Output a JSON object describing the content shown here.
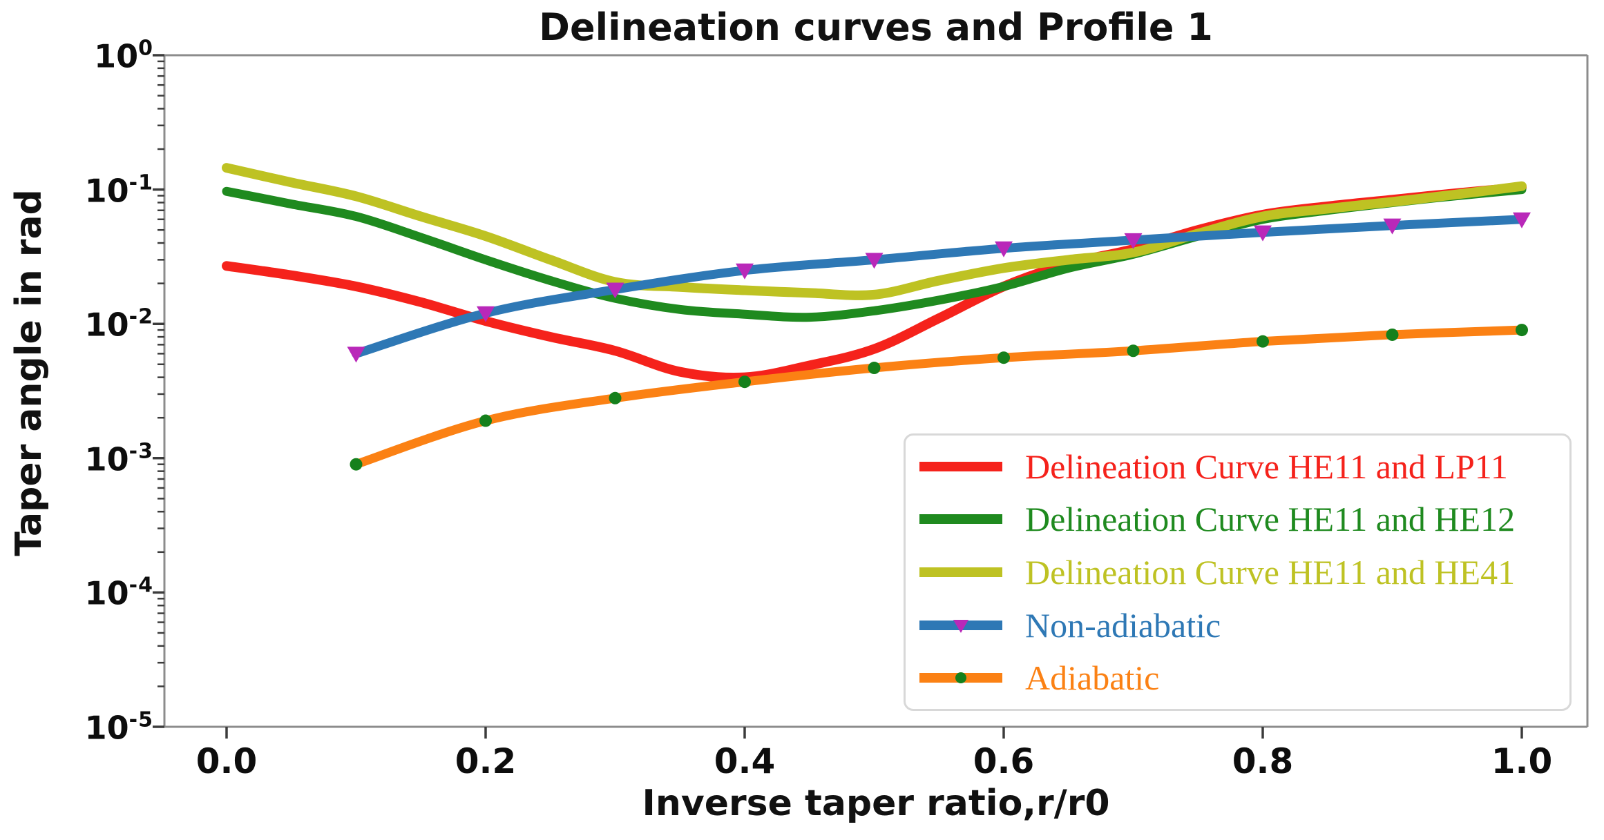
{
  "figure": {
    "background": "#ffffff",
    "spine_color": "#8c8c8c",
    "tick_color": "#3c3c3c"
  },
  "chart_data": {
    "type": "line",
    "title": "Delineation curves and Profile 1",
    "xlabel": "Inverse taper ratio,r/r0",
    "ylabel": "Taper angle in rad",
    "x_scale": "linear",
    "y_scale": "log",
    "xlim": [
      -0.048,
      1.05
    ],
    "ylim": [
      1e-05,
      1
    ],
    "grid": false,
    "legend_position": "lower-right",
    "x_tick_labels": [
      "0.0",
      "0.2",
      "0.4",
      "0.6",
      "0.8",
      "1.0"
    ],
    "x_tick_values": [
      0.0,
      0.2,
      0.4,
      0.6,
      0.8,
      1.0
    ],
    "y_tick_base": "10",
    "y_tick_exponents": [
      0,
      -1,
      -2,
      -3,
      -4,
      -5
    ],
    "series": [
      {
        "name": "Delineation Curve HE11 and LP11",
        "color": "#f5221b",
        "marker": "none",
        "marker_color": null,
        "line_width": 14,
        "x": [
          0.0,
          0.05,
          0.1,
          0.15,
          0.2,
          0.25,
          0.3,
          0.35,
          0.4,
          0.45,
          0.5,
          0.55,
          0.6,
          0.65,
          0.7,
          0.75,
          0.8,
          0.85,
          0.9,
          0.95,
          1.0
        ],
        "y": [
          0.027,
          0.023,
          0.019,
          0.0145,
          0.0105,
          0.008,
          0.0063,
          0.0044,
          0.004,
          0.0049,
          0.0065,
          0.011,
          0.019,
          0.028,
          0.036,
          0.05,
          0.065,
          0.075,
          0.084,
          0.094,
          0.104
        ]
      },
      {
        "name": "Delineation Curve HE11 and HE12",
        "color": "#1f8a1f",
        "marker": "none",
        "marker_color": null,
        "line_width": 13,
        "x": [
          0.0,
          0.05,
          0.1,
          0.15,
          0.2,
          0.25,
          0.3,
          0.35,
          0.4,
          0.45,
          0.5,
          0.55,
          0.6,
          0.65,
          0.7,
          0.75,
          0.8,
          0.85,
          0.9,
          0.95,
          1.0
        ],
        "y": [
          0.097,
          0.078,
          0.063,
          0.044,
          0.03,
          0.021,
          0.0155,
          0.0128,
          0.0118,
          0.0112,
          0.0125,
          0.015,
          0.019,
          0.026,
          0.033,
          0.045,
          0.06,
          0.07,
          0.08,
          0.09,
          0.1
        ]
      },
      {
        "name": "Delineation Curve HE11 and HE41",
        "color": "#bec223",
        "marker": "none",
        "marker_color": null,
        "line_width": 14,
        "x": [
          0.0,
          0.05,
          0.1,
          0.15,
          0.2,
          0.25,
          0.3,
          0.35,
          0.4,
          0.45,
          0.5,
          0.55,
          0.6,
          0.65,
          0.7,
          0.75,
          0.8,
          0.85,
          0.9,
          0.95,
          1.0
        ],
        "y": [
          0.145,
          0.113,
          0.089,
          0.063,
          0.045,
          0.03,
          0.0205,
          0.0188,
          0.0178,
          0.017,
          0.0165,
          0.021,
          0.026,
          0.03,
          0.034,
          0.047,
          0.063,
          0.072,
          0.081,
          0.092,
          0.106
        ]
      },
      {
        "name": "Non-adiabatic",
        "color": "#2e78b5",
        "marker": "triangle-down",
        "marker_color": "#b928b9",
        "line_width": 13,
        "x": [
          0.1,
          0.2,
          0.3,
          0.4,
          0.5,
          0.6,
          0.7,
          0.8,
          0.9,
          1.0
        ],
        "y": [
          0.006,
          0.012,
          0.018,
          0.025,
          0.03,
          0.0365,
          0.042,
          0.048,
          0.054,
          0.06
        ]
      },
      {
        "name": "Adiabatic",
        "color": "#fb8114",
        "marker": "circle",
        "marker_color": "#15801c",
        "line_width": 13,
        "x": [
          0.1,
          0.2,
          0.3,
          0.4,
          0.5,
          0.6,
          0.7,
          0.8,
          0.9,
          1.0
        ],
        "y": [
          0.0009,
          0.0019,
          0.0028,
          0.0037,
          0.0047,
          0.0056,
          0.0063,
          0.0074,
          0.0083,
          0.009
        ]
      }
    ]
  }
}
